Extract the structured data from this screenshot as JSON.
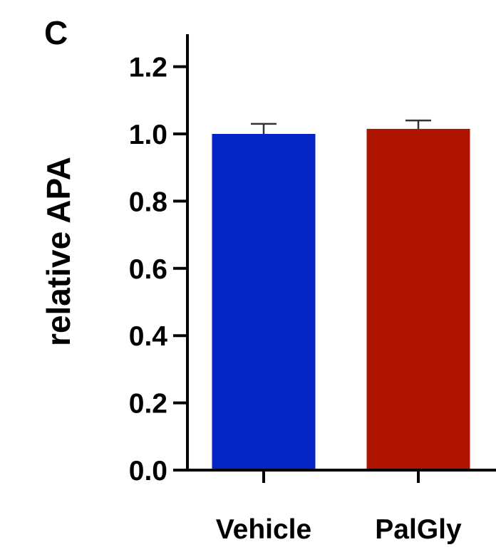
{
  "panel_label": "C",
  "colors": {
    "vehicle": "#0424C3",
    "palgly": "#AE1400",
    "axis": "#000000"
  },
  "chart_data": {
    "type": "bar",
    "title": "",
    "xlabel": "",
    "ylabel": "relative APA",
    "categories": [
      "Vehicle",
      "PalGly"
    ],
    "values": [
      1.0,
      1.015
    ],
    "errors_upper": [
      0.03,
      0.025
    ],
    "error_bar_direction": "up",
    "ylim": [
      0,
      1.2
    ],
    "yticks": [
      0.0,
      0.2,
      0.4,
      0.6,
      0.8,
      1.0,
      1.2
    ],
    "ytick_labels": [
      "0.0",
      "0.2",
      "0.4",
      "0.6",
      "0.8",
      "1.0",
      "1.2"
    ],
    "bar_colors": [
      "#0424C3",
      "#AE1400"
    ],
    "grid": false,
    "legend": "none"
  }
}
